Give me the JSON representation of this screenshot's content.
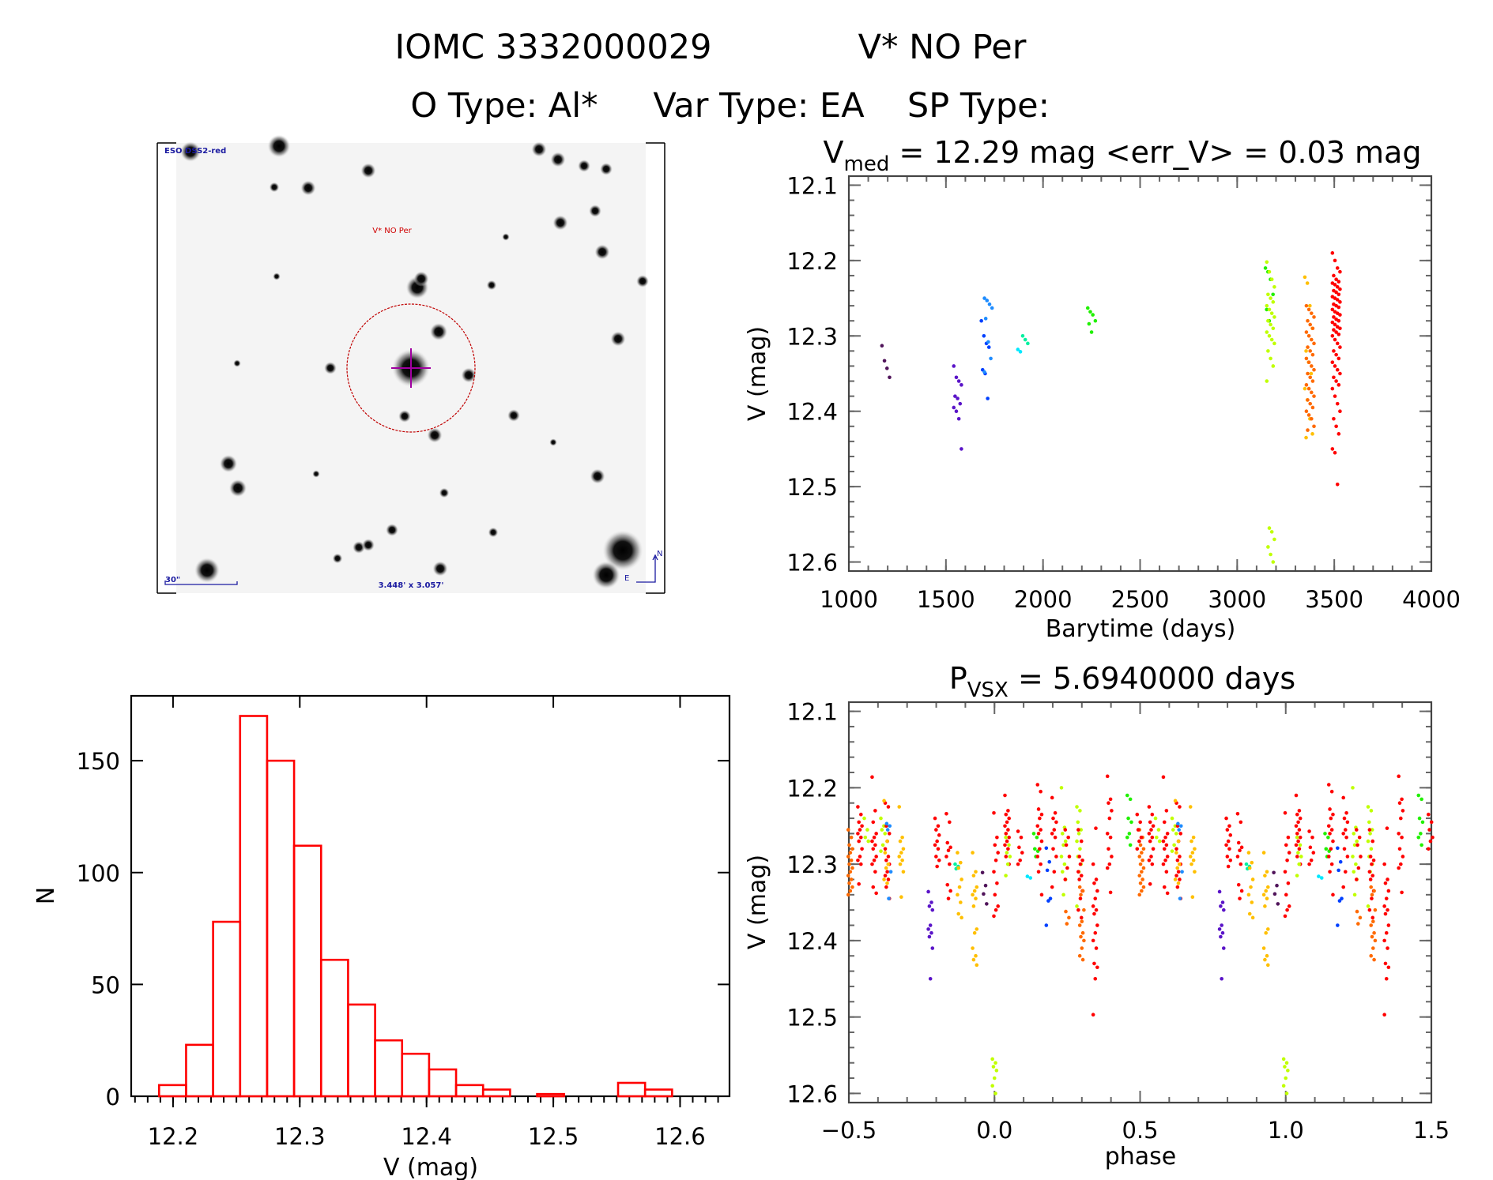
{
  "header": {
    "object_id": "IOMC 3332000029",
    "object_name": "V* NO Per",
    "o_type": "O Type: Al*",
    "var_type": "Var Type: EA",
    "sp_type": "SP Type:"
  },
  "finder_chart": {
    "survey_label": "ESO DSS2-red",
    "target_label": "V* NO Per",
    "scale_label": "30\"",
    "field_size": "3.448' x 3.057'",
    "north_label": "N",
    "east_label": "E"
  },
  "colors": {
    "red": "#ff0000",
    "orange": "#ff6a00",
    "yellow": "#ffbf00",
    "yellowgreen": "#c0ff00",
    "green": "#20f000",
    "cyangreen": "#00f0a0",
    "cyan": "#00e8ff",
    "lightblue": "#1e8cff",
    "blue": "#0040ff",
    "violet": "#5a14c8",
    "darkpurple": "#50145a",
    "hist": "#ff0000"
  },
  "chart_data": [
    {
      "type": "scatter",
      "title_parts": [
        "V",
        "med",
        " = 12.29 mag <err_V> = 0.03 mag"
      ],
      "xlabel": "Barytime (days)",
      "ylabel": "V (mag)",
      "xlim": [
        1000,
        4000
      ],
      "ylim": [
        12.088,
        12.612
      ],
      "y_inverted": true,
      "x_ticks": [
        "1000",
        "1500",
        "2000",
        "2500",
        "3000",
        "3500",
        "4000"
      ],
      "x_tick_values": [
        1000,
        1500,
        2000,
        2500,
        3000,
        3500,
        4000
      ],
      "y_ticks": [
        "12.1",
        "12.2",
        "12.3",
        "12.4",
        "12.5",
        "12.6"
      ],
      "y_tick_values": [
        12.1,
        12.2,
        12.3,
        12.4,
        12.5,
        12.6
      ],
      "series": [
        {
          "t": 1190,
          "color": "darkpurple",
          "mags": [
            12.313,
            12.333,
            12.343,
            12.355
          ]
        },
        {
          "t": 1560,
          "color": "violet",
          "mags": [
            12.34,
            12.355,
            12.36,
            12.365,
            12.38,
            12.383,
            12.39,
            12.395,
            12.4,
            12.41,
            12.45
          ]
        },
        {
          "t": 1702,
          "color": "blue",
          "mags": [
            12.28,
            12.3,
            12.31,
            12.315,
            12.345,
            12.35,
            12.383
          ]
        },
        {
          "t": 1718,
          "color": "lightblue",
          "mags": [
            12.25,
            12.253,
            12.258,
            12.263,
            12.277,
            12.308,
            12.33,
            12.348
          ]
        },
        {
          "t": 1890,
          "color": "cyan",
          "mags": [
            12.318,
            12.321
          ]
        },
        {
          "t": 1915,
          "color": "cyangreen",
          "mags": [
            12.3,
            12.305,
            12.31
          ]
        },
        {
          "t": 2250,
          "color": "green",
          "mags": [
            12.263,
            12.268,
            12.272,
            12.28,
            12.284,
            12.295
          ]
        },
        {
          "t": 3165,
          "color": "green",
          "mags": [
            12.21,
            12.215,
            12.225,
            12.245,
            12.265,
            12.28
          ]
        },
        {
          "t": 3172,
          "color": "yellowgreen",
          "mags": [
            12.202,
            12.215,
            12.225,
            12.235,
            12.245,
            12.25,
            12.255,
            12.26,
            12.265,
            12.27,
            12.275,
            12.28,
            12.285,
            12.29,
            12.295,
            12.3,
            12.305,
            12.31,
            12.32,
            12.33,
            12.34,
            12.36,
            12.555,
            12.56,
            12.57,
            12.58,
            12.59,
            12.6
          ]
        },
        {
          "t": 3368,
          "color": "yellow",
          "mags": [
            12.222,
            12.23,
            12.26,
            12.29,
            12.32,
            12.335,
            12.35,
            12.37,
            12.385,
            12.41,
            12.43,
            12.435
          ]
        },
        {
          "t": 3376,
          "color": "orange",
          "mags": [
            12.26,
            12.265,
            12.27,
            12.275,
            12.28,
            12.285,
            12.29,
            12.295,
            12.3,
            12.305,
            12.31,
            12.315,
            12.32,
            12.325,
            12.33,
            12.335,
            12.34,
            12.345,
            12.35,
            12.355,
            12.36,
            12.365,
            12.37,
            12.375,
            12.38,
            12.385,
            12.39,
            12.395,
            12.4,
            12.405,
            12.41,
            12.42,
            12.425
          ]
        },
        {
          "t": 3510,
          "color": "red",
          "mags": [
            12.19,
            12.2,
            12.21,
            12.215,
            12.22,
            12.225,
            12.228,
            12.23,
            12.232,
            12.235,
            12.238,
            12.24,
            12.242,
            12.245,
            12.248,
            12.25,
            12.252,
            12.255,
            12.258,
            12.26,
            12.262,
            12.265,
            12.268,
            12.27,
            12.272,
            12.275,
            12.278,
            12.28,
            12.282,
            12.285,
            12.288,
            12.29,
            12.292,
            12.295,
            12.298,
            12.3,
            12.305,
            12.31,
            12.315,
            12.32,
            12.325,
            12.33,
            12.335,
            12.34,
            12.345,
            12.35,
            12.355,
            12.36,
            12.365,
            12.37,
            12.38,
            12.39,
            12.4,
            12.41,
            12.42,
            12.43,
            12.45,
            12.455,
            12.497
          ]
        }
      ]
    },
    {
      "type": "scatter",
      "title_parts": [
        "P",
        "VSX",
        " = 5.6940000 days"
      ],
      "xlabel": "phase",
      "ylabel": "V (mag)",
      "xlim": [
        -0.5,
        1.5
      ],
      "ylim": [
        12.088,
        12.612
      ],
      "y_inverted": true,
      "phase_repeat": 1,
      "x_ticks": [
        "−0.5",
        "0.0",
        "0.5",
        "1.0",
        "1.5"
      ],
      "x_tick_values": [
        -0.5,
        0,
        0.5,
        1.0,
        1.5
      ],
      "y_ticks": [
        "12.1",
        "12.2",
        "12.3",
        "12.4",
        "12.5",
        "12.6"
      ],
      "y_tick_values": [
        12.1,
        12.2,
        12.3,
        12.4,
        12.5,
        12.6
      ],
      "series": [
        {
          "phase": -0.495,
          "color": "orange",
          "mags": [
            12.255,
            12.265,
            12.275,
            12.28,
            12.285,
            12.29,
            12.295,
            12.3,
            12.305,
            12.31,
            12.315,
            12.32,
            12.325,
            12.33,
            12.335,
            12.34
          ]
        },
        {
          "phase": -0.462,
          "color": "red",
          "mags": [
            12.225,
            12.235,
            12.245,
            12.25,
            12.255,
            12.26,
            12.265,
            12.27,
            12.28,
            12.29,
            12.295,
            12.3,
            12.326
          ]
        },
        {
          "phase": -0.44,
          "color": "yellowgreen",
          "mags": [
            12.24,
            12.255,
            12.265,
            12.27
          ]
        },
        {
          "phase": -0.413,
          "color": "red",
          "mags": [
            12.186,
            12.23,
            12.245,
            12.26,
            12.265,
            12.27,
            12.275,
            12.28,
            12.29,
            12.295,
            12.3,
            12.31,
            12.33,
            12.338
          ]
        },
        {
          "phase": -0.383,
          "color": "yellowgreen",
          "mags": [
            12.24,
            12.25,
            12.255,
            12.26,
            12.275,
            12.283
          ]
        },
        {
          "phase": -0.368,
          "color": "red",
          "mags": [
            12.22,
            12.225,
            12.25,
            12.26,
            12.27,
            12.28,
            12.29,
            12.295,
            12.3,
            12.31,
            12.315,
            12.32,
            12.33,
            12.345
          ]
        },
        {
          "phase": -0.363,
          "color": "lightblue",
          "mags": [
            12.247,
            12.25,
            12.255,
            12.31,
            12.345
          ]
        },
        {
          "phase": -0.372,
          "color": "yellow",
          "mags": [
            12.217,
            12.27,
            12.285,
            12.3,
            12.305,
            12.32,
            12.325
          ]
        },
        {
          "phase": -0.32,
          "color": "yellow",
          "mags": [
            12.225,
            12.265,
            12.27,
            12.28,
            12.285,
            12.29,
            12.295,
            12.3,
            12.31,
            12.343
          ]
        },
        {
          "phase": -0.22,
          "color": "violet",
          "mags": [
            12.336,
            12.35,
            12.355,
            12.36,
            12.38,
            12.385,
            12.39,
            12.395,
            12.41,
            12.45
          ]
        },
        {
          "phase": -0.197,
          "color": "red",
          "mags": [
            12.24,
            12.25,
            12.255,
            12.262,
            12.27,
            12.275,
            12.28,
            12.29,
            12.295,
            12.303
          ]
        },
        {
          "phase": -0.158,
          "color": "red",
          "mags": [
            12.234,
            12.245,
            12.272,
            12.278,
            12.282,
            12.29,
            12.3,
            12.327,
            12.335,
            12.345
          ]
        },
        {
          "phase": -0.128,
          "color": "cyangreen",
          "mags": [
            12.3,
            12.303,
            12.306
          ]
        },
        {
          "phase": -0.12,
          "color": "yellow",
          "mags": [
            12.285,
            12.298,
            12.305,
            12.32,
            12.33,
            12.34,
            12.35,
            12.365,
            12.37
          ]
        },
        {
          "phase": -0.068,
          "color": "yellow",
          "mags": [
            12.285,
            12.31,
            12.315,
            12.33,
            12.335,
            12.34,
            12.345,
            12.355,
            12.385,
            12.39,
            12.41,
            12.42,
            12.425,
            12.432
          ]
        },
        {
          "phase": -0.034,
          "color": "darkpurple",
          "mags": [
            12.311,
            12.328,
            12.339,
            12.352
          ]
        },
        {
          "phase": 0.0,
          "color": "yellowgreen",
          "mags": [
            12.555,
            12.56,
            12.565,
            12.57,
            12.58,
            12.59,
            12.6
          ]
        },
        {
          "phase": 0.005,
          "color": "red",
          "mags": [
            12.233,
            12.265,
            12.275,
            12.285,
            12.295,
            12.31,
            12.325,
            12.34,
            12.355,
            12.36,
            12.368
          ]
        },
        {
          "phase": 0.043,
          "color": "red",
          "mags": [
            12.21,
            12.23,
            12.235,
            12.24,
            12.245,
            12.25,
            12.255,
            12.26,
            12.265,
            12.27,
            12.275,
            12.28,
            12.29,
            12.3
          ]
        },
        {
          "phase": 0.046,
          "color": "yellowgreen",
          "mags": [
            12.265,
            12.275,
            12.285,
            12.29,
            12.3,
            12.315
          ]
        },
        {
          "phase": 0.088,
          "color": "red",
          "mags": [
            12.257,
            12.265,
            12.278,
            12.285,
            12.295,
            12.3
          ]
        },
        {
          "phase": 0.12,
          "color": "cyan",
          "mags": [
            12.316,
            12.318
          ]
        },
        {
          "phase": 0.142,
          "color": "green",
          "mags": [
            12.26,
            12.265,
            12.28,
            12.283,
            12.29
          ]
        },
        {
          "phase": 0.155,
          "color": "red",
          "mags": [
            12.196,
            12.205,
            12.228,
            12.235,
            12.24,
            12.25,
            12.255,
            12.26,
            12.27,
            12.28,
            12.29,
            12.3,
            12.31,
            12.34
          ]
        },
        {
          "phase": 0.185,
          "color": "blue",
          "mags": [
            12.279,
            12.297,
            12.308,
            12.345,
            12.348,
            12.38
          ]
        },
        {
          "phase": 0.205,
          "color": "red",
          "mags": [
            12.213,
            12.233,
            12.24,
            12.245,
            12.255,
            12.26,
            12.265,
            12.28,
            12.29,
            12.31,
            12.33
          ]
        },
        {
          "phase": 0.237,
          "color": "yellowgreen",
          "mags": [
            12.2,
            12.252,
            12.26,
            12.27,
            12.275,
            12.29,
            12.3,
            12.31,
            12.32,
            12.34
          ]
        },
        {
          "phase": 0.25,
          "color": "red",
          "mags": [
            12.255,
            12.265,
            12.275,
            12.29,
            12.305,
            12.32
          ]
        },
        {
          "phase": 0.252,
          "color": "orange",
          "mags": [
            12.362,
            12.37,
            12.378
          ]
        },
        {
          "phase": 0.29,
          "color": "yellowgreen",
          "mags": [
            12.225,
            12.23,
            12.245,
            12.255,
            12.26,
            12.27,
            12.28,
            12.29,
            12.3,
            12.31,
            12.355
          ]
        },
        {
          "phase": 0.295,
          "color": "red",
          "mags": [
            12.255,
            12.27,
            12.29,
            12.295,
            12.3,
            12.31,
            12.315,
            12.32,
            12.335,
            12.345,
            12.36,
            12.37
          ]
        },
        {
          "phase": 0.3,
          "color": "orange",
          "mags": [
            12.33,
            12.335,
            12.34,
            12.36,
            12.375,
            12.38,
            12.39,
            12.395,
            12.4,
            12.41,
            12.42,
            12.425
          ]
        },
        {
          "phase": 0.346,
          "color": "red",
          "mags": [
            12.3,
            12.32,
            12.325,
            12.335,
            12.345,
            12.355,
            12.36,
            12.365,
            12.38,
            12.39,
            12.4,
            12.41,
            12.43,
            12.435,
            12.45,
            12.497
          ]
        },
        {
          "phase": 0.355,
          "color": "red",
          "mags": [
            12.253
          ]
        },
        {
          "phase": 0.395,
          "color": "red",
          "mags": [
            12.185,
            12.215,
            12.22,
            12.23,
            12.24,
            12.26,
            12.265,
            12.28,
            12.29,
            12.3,
            12.305,
            12.337
          ]
        },
        {
          "phase": 0.463,
          "color": "green",
          "mags": [
            12.21,
            12.215,
            12.24,
            12.245,
            12.26,
            12.265,
            12.275
          ]
        },
        {
          "phase": 0.497,
          "color": "red",
          "mags": [
            12.235,
            12.245,
            12.255,
            12.265,
            12.27,
            12.28
          ]
        }
      ]
    },
    {
      "type": "bar",
      "subtype": "histogram",
      "xlabel": "V (mag)",
      "ylabel": "N",
      "xlim": [
        12.167,
        12.639
      ],
      "ylim": [
        0,
        179
      ],
      "bin_start": 12.189,
      "bin_width": 0.0213,
      "values": [
        5,
        23,
        78,
        170,
        150,
        112,
        61,
        41,
        25,
        19,
        12,
        5,
        3,
        0,
        1,
        0,
        0,
        6,
        3
      ],
      "x_ticks": [
        "12.2",
        "12.3",
        "12.4",
        "12.5",
        "12.6"
      ],
      "x_tick_values": [
        12.2,
        12.3,
        12.4,
        12.5,
        12.6
      ],
      "y_ticks": [
        "0",
        "50",
        "100",
        "150"
      ],
      "y_tick_values": [
        0,
        50,
        100,
        150
      ]
    }
  ]
}
